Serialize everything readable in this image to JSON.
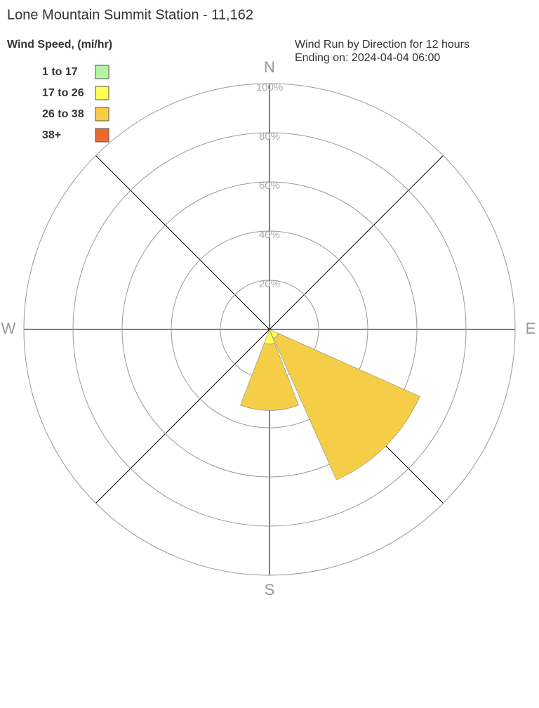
{
  "chart_data": {
    "type": "windrose",
    "title": "Lone Mountain Summit Station - 11,162",
    "legend_title": "Wind Speed, (mi/hr)",
    "subtitle": [
      "Wind Run by Direction for 12 hours",
      "Ending on: 2024-04-04 06:00"
    ],
    "categories": [
      "N",
      null,
      "E",
      null,
      "S",
      null,
      "W",
      null
    ],
    "series": [
      {
        "name": "1 to 17",
        "color": "#b3f5a3",
        "values": [
          0,
          0,
          0,
          0,
          0,
          0,
          0,
          0
        ]
      },
      {
        "name": "17 to 26",
        "color": "#ffff55",
        "values": [
          0,
          0,
          0,
          4,
          6,
          0,
          0,
          0
        ]
      },
      {
        "name": "26 to 38",
        "color": "#f6cd46",
        "values": [
          0,
          0,
          0,
          63,
          27,
          0,
          0,
          0
        ]
      },
      {
        "name": "38+",
        "color": "#ee6a2c",
        "values": [
          0,
          0,
          0,
          0,
          0,
          0,
          0,
          0
        ]
      }
    ],
    "rlim": [
      0,
      100
    ],
    "rticks": [
      {
        "value": 20,
        "label": "20%"
      },
      {
        "value": 40,
        "label": "40%"
      },
      {
        "value": 60,
        "label": "60%"
      },
      {
        "value": 80,
        "label": "80%"
      },
      {
        "value": 100,
        "label": "100%"
      }
    ]
  }
}
